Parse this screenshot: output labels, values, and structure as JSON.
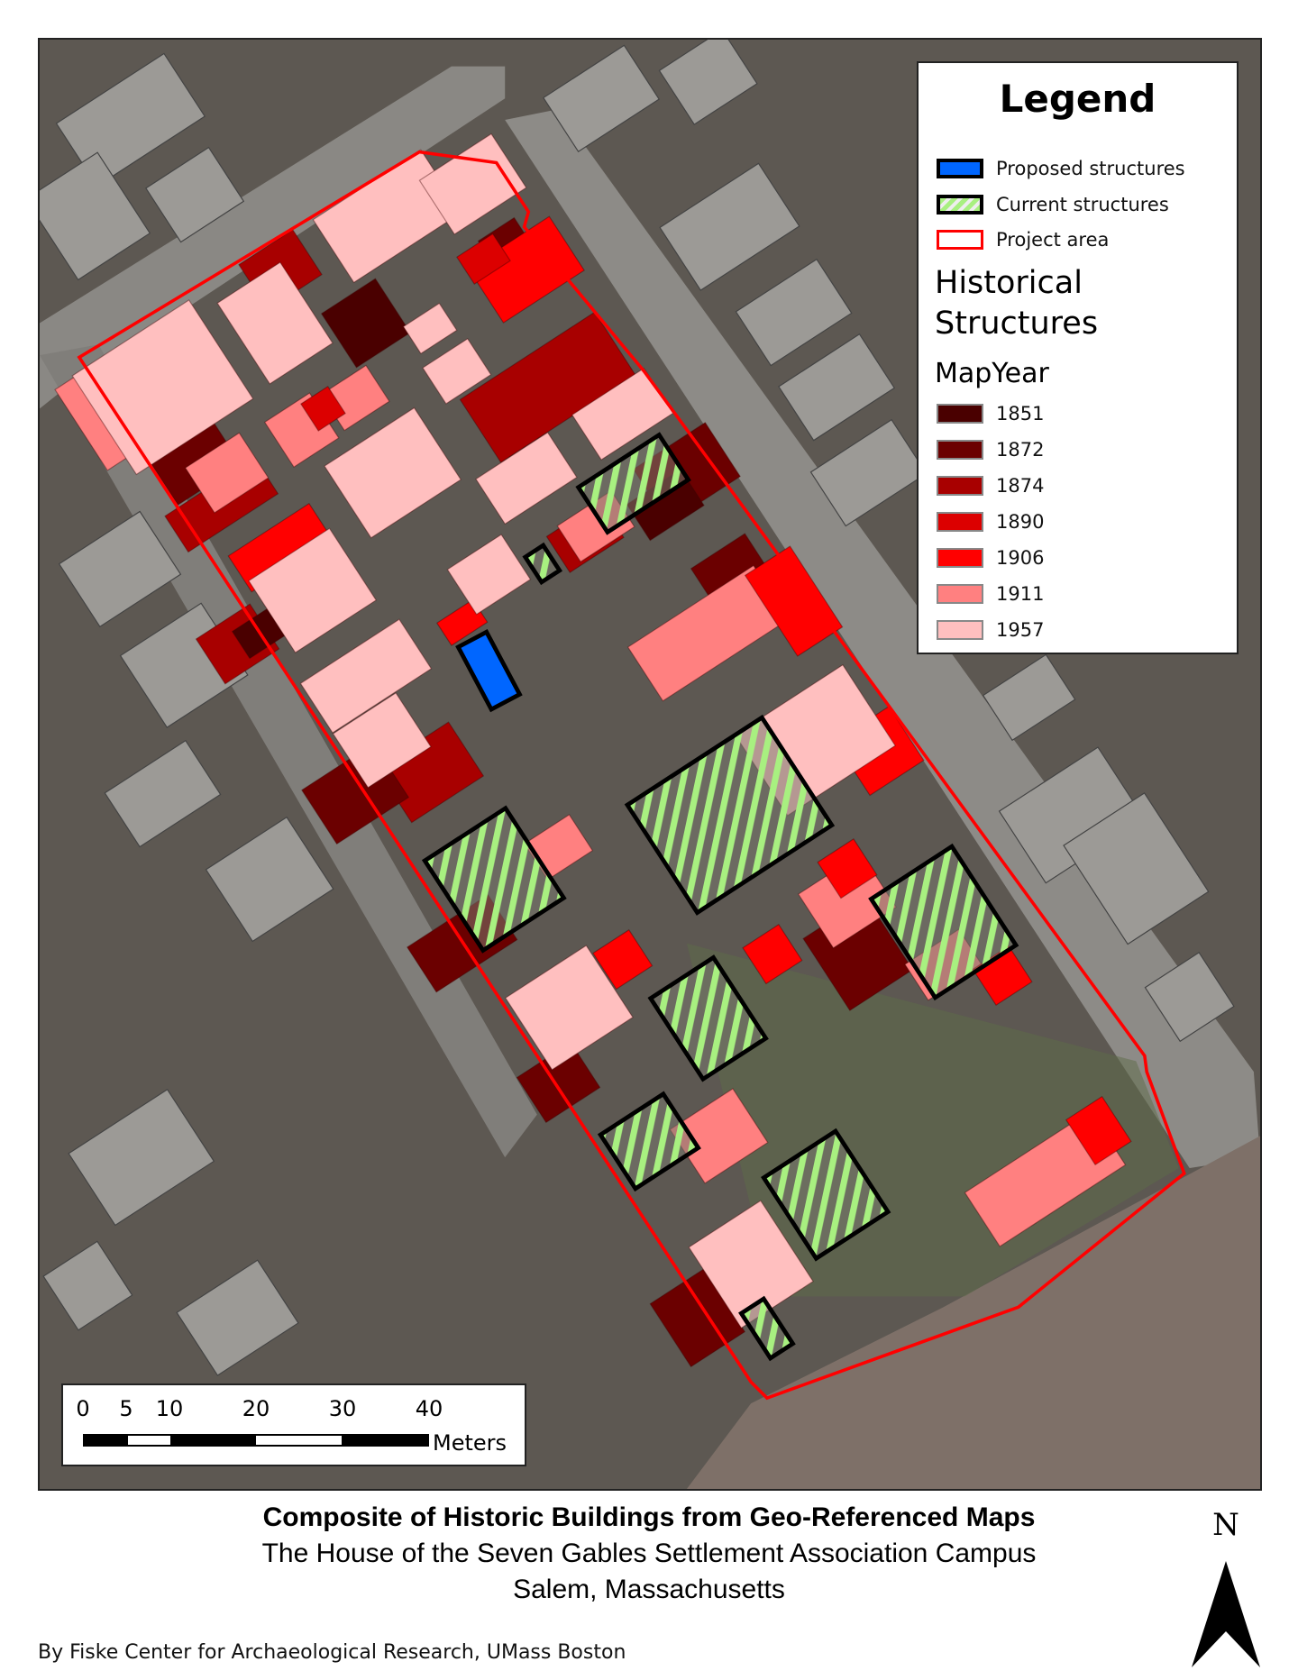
{
  "legend": {
    "title": "Legend",
    "items": [
      {
        "label": "Proposed structures",
        "fill": "#0066ff",
        "stroke": "#000000"
      },
      {
        "label": "Current structures",
        "fill": "hatch-green",
        "stroke": "#000000"
      },
      {
        "label": "Project area",
        "fill": "#ffffff",
        "stroke": "#ff0000"
      }
    ],
    "historical_title": "Historical Structures",
    "historical_line1": "Historical",
    "historical_line2": "Structures",
    "field": "MapYear",
    "years": [
      {
        "label": "1851",
        "color": "#4a0000"
      },
      {
        "label": "1872",
        "color": "#6b0000"
      },
      {
        "label": "1874",
        "color": "#a80000"
      },
      {
        "label": "1890",
        "color": "#dc0000"
      },
      {
        "label": "1906",
        "color": "#ff0000"
      },
      {
        "label": "1911",
        "color": "#ff8080"
      },
      {
        "label": "1957",
        "color": "#ffbfbf"
      }
    ]
  },
  "scale_bar": {
    "ticks": [
      "0",
      "5",
      "10",
      "20",
      "30",
      "40"
    ],
    "units": "Meters"
  },
  "title": {
    "main": "Composite of Historic Buildings from Geo-Referenced Maps",
    "subtitle": "The House of the Seven Gables Settlement Association Campus",
    "location": "Salem, Massachusetts"
  },
  "credit": "By Fiske Center for Archaeological Research, UMass Boston",
  "north_arrow": {
    "label": "N"
  },
  "colors": {
    "hatch_green": "#a8f080",
    "project_area": "#ff0000",
    "proposed": "#0066ff"
  }
}
